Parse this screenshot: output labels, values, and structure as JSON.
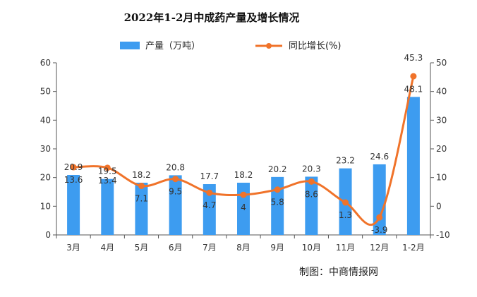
{
  "chart_data": {
    "type": "bar",
    "title": "2022年1-2月中成药产量及增长情况",
    "categories": [
      "3月",
      "4月",
      "5月",
      "6月",
      "7月",
      "8月",
      "9月",
      "10月",
      "11月",
      "12月",
      "1-2月"
    ],
    "series": [
      {
        "name": "产量（万吨）",
        "type": "bar",
        "axis": "left",
        "color": "#3d9cf0",
        "values": [
          20.9,
          19.5,
          18.2,
          20.8,
          17.7,
          18.2,
          20.2,
          20.3,
          23.2,
          24.6,
          48.1
        ]
      },
      {
        "name": "同比增长(%)",
        "type": "line",
        "axis": "right",
        "color": "#f0732a",
        "values": [
          13.6,
          13.4,
          7.1,
          9.5,
          4.7,
          4,
          5.8,
          8.6,
          1.3,
          -3.9,
          45.3
        ]
      }
    ],
    "y_left": {
      "min": 0,
      "max": 60,
      "ticks": [
        "0",
        "10",
        "20",
        "30",
        "40",
        "50",
        "60"
      ]
    },
    "y_right": {
      "min": -10,
      "max": 50,
      "ticks": [
        "-10",
        "0",
        "10",
        "20",
        "30",
        "40",
        "50"
      ]
    },
    "bar_labels": [
      "20.9",
      "19.5",
      "18.2",
      "20.8",
      "17.7",
      "18.2",
      "20.2",
      "20.3",
      "23.2",
      "24.6",
      "48.1"
    ],
    "line_labels": [
      "13.6",
      "13.4",
      "7.1",
      "9.5",
      "4.7",
      "4",
      "5.8",
      "8.6",
      "1.3",
      "-3.9",
      "45.3"
    ],
    "legend_placement": "top-center",
    "grid": false
  },
  "credit": "制图：中商情报网"
}
